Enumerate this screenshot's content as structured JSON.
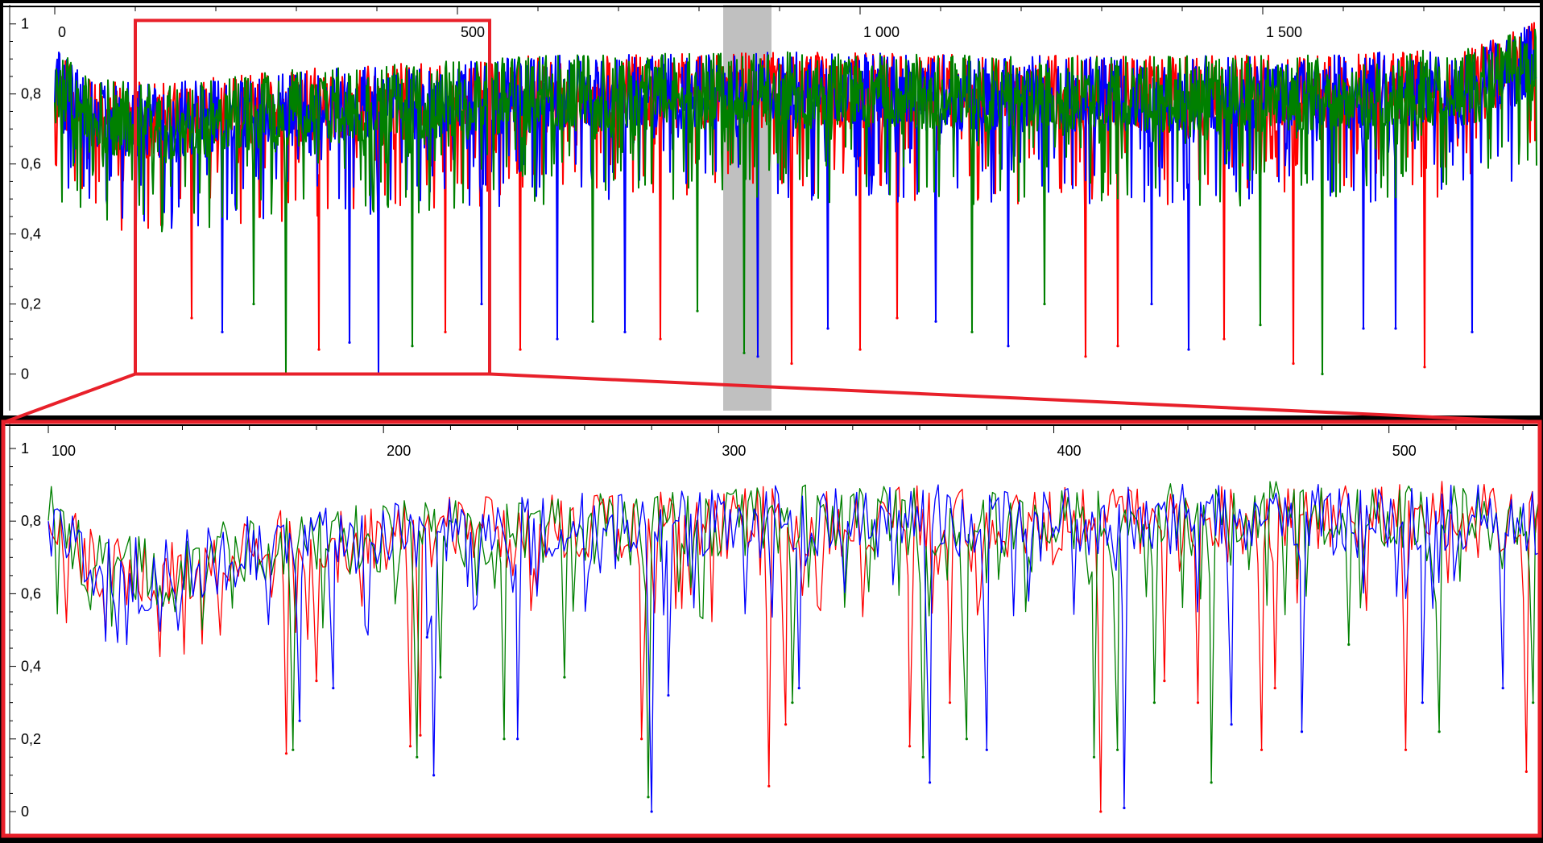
{
  "colors": {
    "red": "#ff0000",
    "green": "#008000",
    "blue": "#0000ff",
    "zoom_box": "#e8202a",
    "highlight": "#c0c0c0",
    "background": "#ffffff",
    "frame": "#000000"
  },
  "chart_data": [
    {
      "panel": "overview",
      "type": "line",
      "title": "",
      "xlabel": "",
      "ylabel": "",
      "xlim": [
        0,
        1840
      ],
      "ylim": [
        -0.1,
        1.05
      ],
      "x_ticks": [
        0,
        500,
        1000,
        1500
      ],
      "x_tick_labels": [
        "0",
        "500",
        "1 000",
        "1 500"
      ],
      "y_ticks": [
        0,
        0.2,
        0.4,
        0.6,
        0.8,
        1
      ],
      "y_tick_labels": [
        "0",
        "0,2",
        "0,4",
        "0,6",
        "0,8",
        "1"
      ],
      "grid": false,
      "legend": "none",
      "series": [
        {
          "color": "red"
        },
        {
          "color": "blue"
        },
        {
          "color": "green"
        }
      ],
      "baseline_profile": {
        "x": [
          0,
          40,
          120,
          300,
          600,
          900,
          1200,
          1500,
          1760,
          1840
        ],
        "y": [
          0.83,
          0.74,
          0.72,
          0.76,
          0.8,
          0.81,
          0.8,
          0.8,
          0.82,
          0.9
        ]
      },
      "highlight_x_range": [
        830,
        890
      ],
      "zoom_x_range": [
        100,
        540
      ],
      "zoom_y_range": [
        0,
        1.01
      ],
      "dips": [
        {
          "x": 170,
          "y": 0.16,
          "color": "red"
        },
        {
          "x": 208,
          "y": 0.12,
          "color": "blue"
        },
        {
          "x": 247,
          "y": 0.2,
          "color": "green"
        },
        {
          "x": 287,
          "y": 0.0,
          "color": "green"
        },
        {
          "x": 328,
          "y": 0.07,
          "color": "red"
        },
        {
          "x": 366,
          "y": 0.09,
          "color": "blue"
        },
        {
          "x": 402,
          "y": 0.0,
          "color": "blue"
        },
        {
          "x": 444,
          "y": 0.08,
          "color": "green"
        },
        {
          "x": 485,
          "y": 0.12,
          "color": "red"
        },
        {
          "x": 530,
          "y": 0.2,
          "color": "blue"
        },
        {
          "x": 578,
          "y": 0.07,
          "color": "red"
        },
        {
          "x": 624,
          "y": 0.1,
          "color": "blue"
        },
        {
          "x": 668,
          "y": 0.15,
          "color": "green"
        },
        {
          "x": 708,
          "y": 0.12,
          "color": "blue"
        },
        {
          "x": 752,
          "y": 0.1,
          "color": "red"
        },
        {
          "x": 798,
          "y": 0.18,
          "color": "green"
        },
        {
          "x": 856,
          "y": 0.06,
          "color": "green"
        },
        {
          "x": 873,
          "y": 0.05,
          "color": "blue"
        },
        {
          "x": 915,
          "y": 0.03,
          "color": "red"
        },
        {
          "x": 960,
          "y": 0.13,
          "color": "blue"
        },
        {
          "x": 1000,
          "y": 0.07,
          "color": "red"
        },
        {
          "x": 1046,
          "y": 0.16,
          "color": "red"
        },
        {
          "x": 1094,
          "y": 0.15,
          "color": "blue"
        },
        {
          "x": 1139,
          "y": 0.12,
          "color": "green"
        },
        {
          "x": 1184,
          "y": 0.08,
          "color": "blue"
        },
        {
          "x": 1229,
          "y": 0.2,
          "color": "green"
        },
        {
          "x": 1280,
          "y": 0.05,
          "color": "red"
        },
        {
          "x": 1320,
          "y": 0.08,
          "color": "red"
        },
        {
          "x": 1362,
          "y": 0.2,
          "color": "blue"
        },
        {
          "x": 1408,
          "y": 0.07,
          "color": "blue"
        },
        {
          "x": 1452,
          "y": 0.1,
          "color": "red"
        },
        {
          "x": 1497,
          "y": 0.14,
          "color": "green"
        },
        {
          "x": 1538,
          "y": 0.03,
          "color": "red"
        },
        {
          "x": 1574,
          "y": 0.0,
          "color": "green"
        },
        {
          "x": 1625,
          "y": 0.13,
          "color": "blue"
        },
        {
          "x": 1665,
          "y": 0.13,
          "color": "blue"
        },
        {
          "x": 1701,
          "y": 0.02,
          "color": "red"
        },
        {
          "x": 1760,
          "y": 0.12,
          "color": "blue"
        }
      ]
    },
    {
      "panel": "zoom",
      "type": "line",
      "title": "",
      "xlabel": "",
      "ylabel": "",
      "xlim": [
        100,
        545
      ],
      "ylim": [
        -0.04,
        1.02
      ],
      "x_ticks": [
        100,
        200,
        300,
        400,
        500
      ],
      "x_tick_labels": [
        "100",
        "200",
        "300",
        "400",
        "500"
      ],
      "y_ticks": [
        0,
        0.2,
        0.4,
        0.6,
        0.8,
        1
      ],
      "y_tick_labels": [
        "0",
        "0,2",
        "0,4",
        "0,6",
        "0,8",
        "1"
      ],
      "grid": false,
      "legend": "none",
      "series": [
        {
          "color": "red"
        },
        {
          "color": "green"
        },
        {
          "color": "blue"
        }
      ],
      "baseline_profile": {
        "x": [
          100,
          110,
          130,
          160,
          200,
          260,
          320,
          400,
          460,
          520,
          545
        ],
        "y": [
          0.85,
          0.7,
          0.65,
          0.72,
          0.76,
          0.78,
          0.8,
          0.8,
          0.81,
          0.81,
          0.8
        ]
      },
      "dips": [
        {
          "x": 171,
          "y": 0.16,
          "color": "red"
        },
        {
          "x": 173,
          "y": 0.17,
          "color": "green"
        },
        {
          "x": 175,
          "y": 0.25,
          "color": "blue"
        },
        {
          "x": 180,
          "y": 0.36,
          "color": "red"
        },
        {
          "x": 185,
          "y": 0.34,
          "color": "blue"
        },
        {
          "x": 208,
          "y": 0.18,
          "color": "red"
        },
        {
          "x": 210,
          "y": 0.15,
          "color": "green"
        },
        {
          "x": 211,
          "y": 0.21,
          "color": "red"
        },
        {
          "x": 213,
          "y": 0.48,
          "color": "blue"
        },
        {
          "x": 215,
          "y": 0.1,
          "color": "blue"
        },
        {
          "x": 217,
          "y": 0.37,
          "color": "green"
        },
        {
          "x": 236,
          "y": 0.2,
          "color": "green"
        },
        {
          "x": 240,
          "y": 0.2,
          "color": "blue"
        },
        {
          "x": 254,
          "y": 0.37,
          "color": "green"
        },
        {
          "x": 277,
          "y": 0.2,
          "color": "red"
        },
        {
          "x": 279,
          "y": 0.04,
          "color": "green"
        },
        {
          "x": 280,
          "y": 0.0,
          "color": "blue"
        },
        {
          "x": 285,
          "y": 0.32,
          "color": "blue"
        },
        {
          "x": 315,
          "y": 0.07,
          "color": "red"
        },
        {
          "x": 320,
          "y": 0.24,
          "color": "red"
        },
        {
          "x": 322,
          "y": 0.3,
          "color": "green"
        },
        {
          "x": 324,
          "y": 0.34,
          "color": "blue"
        },
        {
          "x": 357,
          "y": 0.18,
          "color": "red"
        },
        {
          "x": 361,
          "y": 0.15,
          "color": "green"
        },
        {
          "x": 363,
          "y": 0.08,
          "color": "blue"
        },
        {
          "x": 369,
          "y": 0.3,
          "color": "red"
        },
        {
          "x": 374,
          "y": 0.2,
          "color": "green"
        },
        {
          "x": 380,
          "y": 0.17,
          "color": "blue"
        },
        {
          "x": 412,
          "y": 0.15,
          "color": "green"
        },
        {
          "x": 414,
          "y": 0.0,
          "color": "red"
        },
        {
          "x": 419,
          "y": 0.17,
          "color": "green"
        },
        {
          "x": 421,
          "y": 0.01,
          "color": "blue"
        },
        {
          "x": 430,
          "y": 0.3,
          "color": "green"
        },
        {
          "x": 433,
          "y": 0.36,
          "color": "red"
        },
        {
          "x": 443,
          "y": 0.3,
          "color": "red"
        },
        {
          "x": 447,
          "y": 0.08,
          "color": "green"
        },
        {
          "x": 453,
          "y": 0.24,
          "color": "blue"
        },
        {
          "x": 462,
          "y": 0.17,
          "color": "red"
        },
        {
          "x": 466,
          "y": 0.34,
          "color": "red"
        },
        {
          "x": 474,
          "y": 0.22,
          "color": "blue"
        },
        {
          "x": 488,
          "y": 0.46,
          "color": "green"
        },
        {
          "x": 505,
          "y": 0.17,
          "color": "red"
        },
        {
          "x": 510,
          "y": 0.3,
          "color": "blue"
        },
        {
          "x": 515,
          "y": 0.22,
          "color": "green"
        },
        {
          "x": 534,
          "y": 0.34,
          "color": "blue"
        },
        {
          "x": 541,
          "y": 0.11,
          "color": "red"
        },
        {
          "x": 543,
          "y": 0.3,
          "color": "green"
        }
      ]
    }
  ]
}
